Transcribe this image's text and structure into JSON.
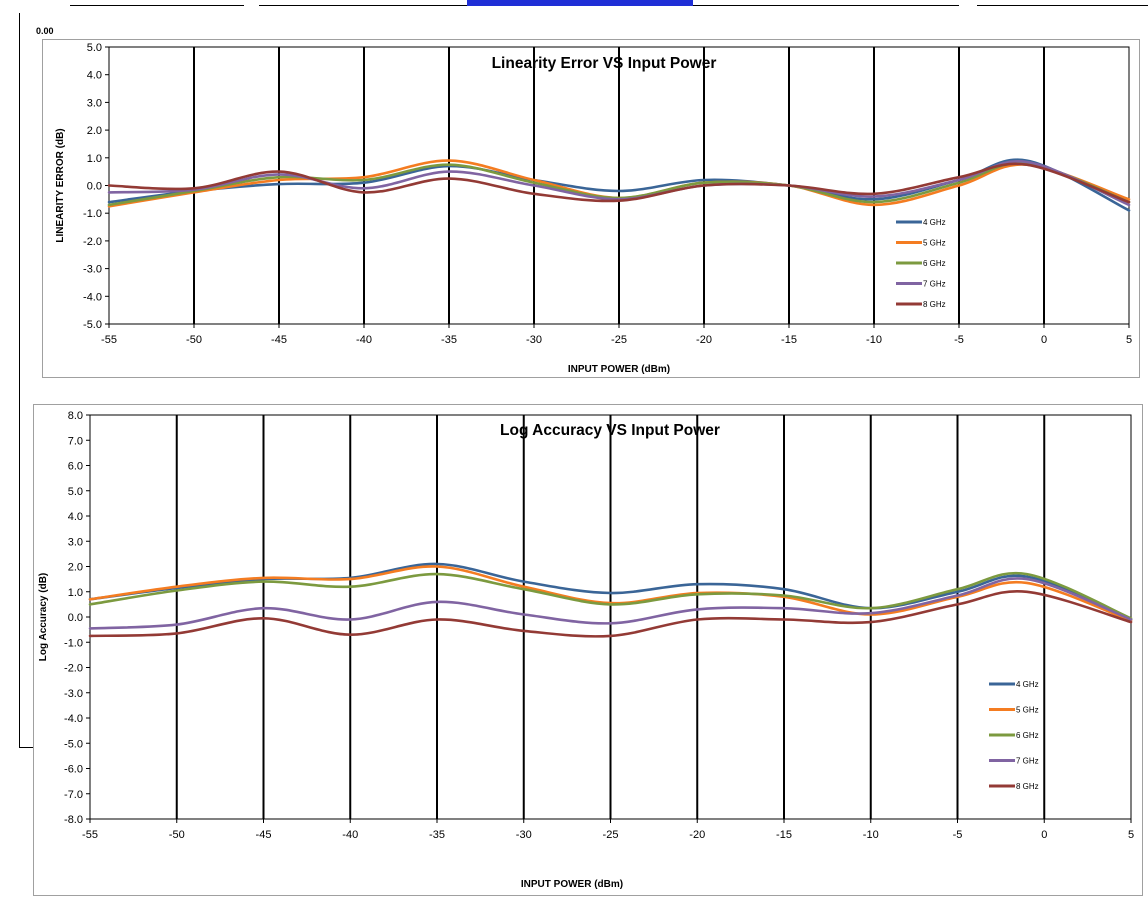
{
  "page": {
    "stray_label": "0.00"
  },
  "colors": {
    "4 GHz": "#3a6597",
    "5 GHz": "#f47c21",
    "6 GHz": "#7c9a3f",
    "7 GHz": "#8064a2",
    "8 GHz": "#933a35"
  },
  "chart_data": [
    {
      "type": "line",
      "title": "Linearity Error VS Input Power",
      "xlabel": "INPUT POWER (dBm)",
      "ylabel": "LINEARITY ERROR (dB)",
      "xlim": [
        -55,
        5
      ],
      "ylim": [
        -5,
        5
      ],
      "xticks": [
        -55,
        -50,
        -45,
        -40,
        -35,
        -30,
        -25,
        -20,
        -15,
        -10,
        -5,
        0,
        5
      ],
      "xtick_labels": [
        "-55",
        "-50",
        "-45",
        "-40",
        "-35",
        "-30",
        "-25",
        "-20",
        "-15",
        "-10",
        "-5",
        "0",
        "5"
      ],
      "yticks": [
        -5,
        -4,
        -3,
        -2,
        -1,
        0,
        1,
        2,
        3,
        4,
        5
      ],
      "ytick_labels": [
        "-5.0",
        "-4.0",
        "-3.0",
        "-2.0",
        "-1.0",
        "0.0",
        "1.0",
        "2.0",
        "3.0",
        "4.0",
        "5.0"
      ],
      "grid": "vertical",
      "legend_position": "bottom-right",
      "x": [
        -55,
        -50,
        -45,
        -40,
        -35,
        -30,
        -25,
        -20,
        -15,
        -10,
        -5,
        -1,
        5
      ],
      "series": [
        {
          "name": "4 GHz",
          "values": [
            -0.6,
            -0.2,
            0.05,
            0.1,
            0.7,
            0.2,
            -0.2,
            0.2,
            0.0,
            -0.5,
            0.2,
            0.9,
            -0.9
          ]
        },
        {
          "name": "5 GHz",
          "values": [
            -0.75,
            -0.25,
            0.2,
            0.3,
            0.9,
            0.2,
            -0.45,
            0.1,
            0.0,
            -0.7,
            0.0,
            0.75,
            -0.5
          ]
        },
        {
          "name": "6 GHz",
          "values": [
            -0.7,
            -0.2,
            0.3,
            0.2,
            0.75,
            0.1,
            -0.45,
            0.1,
            0.0,
            -0.6,
            0.1,
            0.8,
            -0.6
          ]
        },
        {
          "name": "7 GHz",
          "values": [
            -0.25,
            -0.15,
            0.4,
            -0.1,
            0.5,
            0.0,
            -0.5,
            0.0,
            0.0,
            -0.4,
            0.2,
            0.85,
            -0.7
          ]
        },
        {
          "name": "8 GHz",
          "values": [
            0.0,
            -0.1,
            0.5,
            -0.25,
            0.25,
            -0.3,
            -0.55,
            0.0,
            0.0,
            -0.3,
            0.3,
            0.75,
            -0.6
          ]
        }
      ]
    },
    {
      "type": "line",
      "title": "Log Accuracy VS Input Power",
      "xlabel": "INPUT POWER (dBm)",
      "ylabel": "Log Accuracy (dB)",
      "xlim": [
        -55,
        5
      ],
      "ylim": [
        -8,
        8
      ],
      "xticks": [
        -55,
        -50,
        -45,
        -40,
        -35,
        -30,
        -25,
        -20,
        -15,
        -10,
        -5,
        0,
        5
      ],
      "xtick_labels": [
        "-55",
        "-50",
        "-45",
        "-40",
        "-35",
        "-30",
        "-25",
        "-20",
        "-15",
        "-10",
        "-5",
        "0",
        "5"
      ],
      "yticks": [
        -8,
        -7,
        -6,
        -5,
        -4,
        -3,
        -2,
        -1,
        0,
        1,
        2,
        3,
        4,
        5,
        6,
        7,
        8
      ],
      "ytick_labels": [
        "-8.0",
        "-7.0",
        "-6.0",
        "-5.0",
        "-4.0",
        "-3.0",
        "-2.0",
        "-1.0",
        "0.0",
        "1.0",
        "2.0",
        "3.0",
        "4.0",
        "5.0",
        "6.0",
        "7.0",
        "8.0"
      ],
      "grid": "vertical",
      "legend_position": "bottom-right",
      "x": [
        -55,
        -50,
        -45,
        -40,
        -35,
        -30,
        -25,
        -20,
        -15,
        -10,
        -5,
        -1,
        5
      ],
      "series": [
        {
          "name": "4 GHz",
          "values": [
            0.7,
            1.15,
            1.5,
            1.55,
            2.1,
            1.4,
            0.95,
            1.3,
            1.1,
            0.35,
            1.0,
            1.6,
            -0.1
          ]
        },
        {
          "name": "5 GHz",
          "values": [
            0.7,
            1.2,
            1.55,
            1.5,
            2.0,
            1.2,
            0.55,
            0.95,
            0.8,
            0.1,
            0.8,
            1.35,
            -0.15
          ]
        },
        {
          "name": "6 GHz",
          "values": [
            0.5,
            1.05,
            1.4,
            1.2,
            1.7,
            1.1,
            0.5,
            0.9,
            0.85,
            0.35,
            1.1,
            1.7,
            -0.05
          ]
        },
        {
          "name": "7 GHz",
          "values": [
            -0.45,
            -0.3,
            0.35,
            -0.1,
            0.6,
            0.1,
            -0.25,
            0.3,
            0.35,
            0.15,
            0.85,
            1.5,
            -0.1
          ]
        },
        {
          "name": "8 GHz",
          "values": [
            -0.75,
            -0.65,
            -0.05,
            -0.7,
            -0.1,
            -0.55,
            -0.75,
            -0.1,
            -0.1,
            -0.2,
            0.5,
            1.0,
            -0.2
          ]
        }
      ]
    }
  ]
}
